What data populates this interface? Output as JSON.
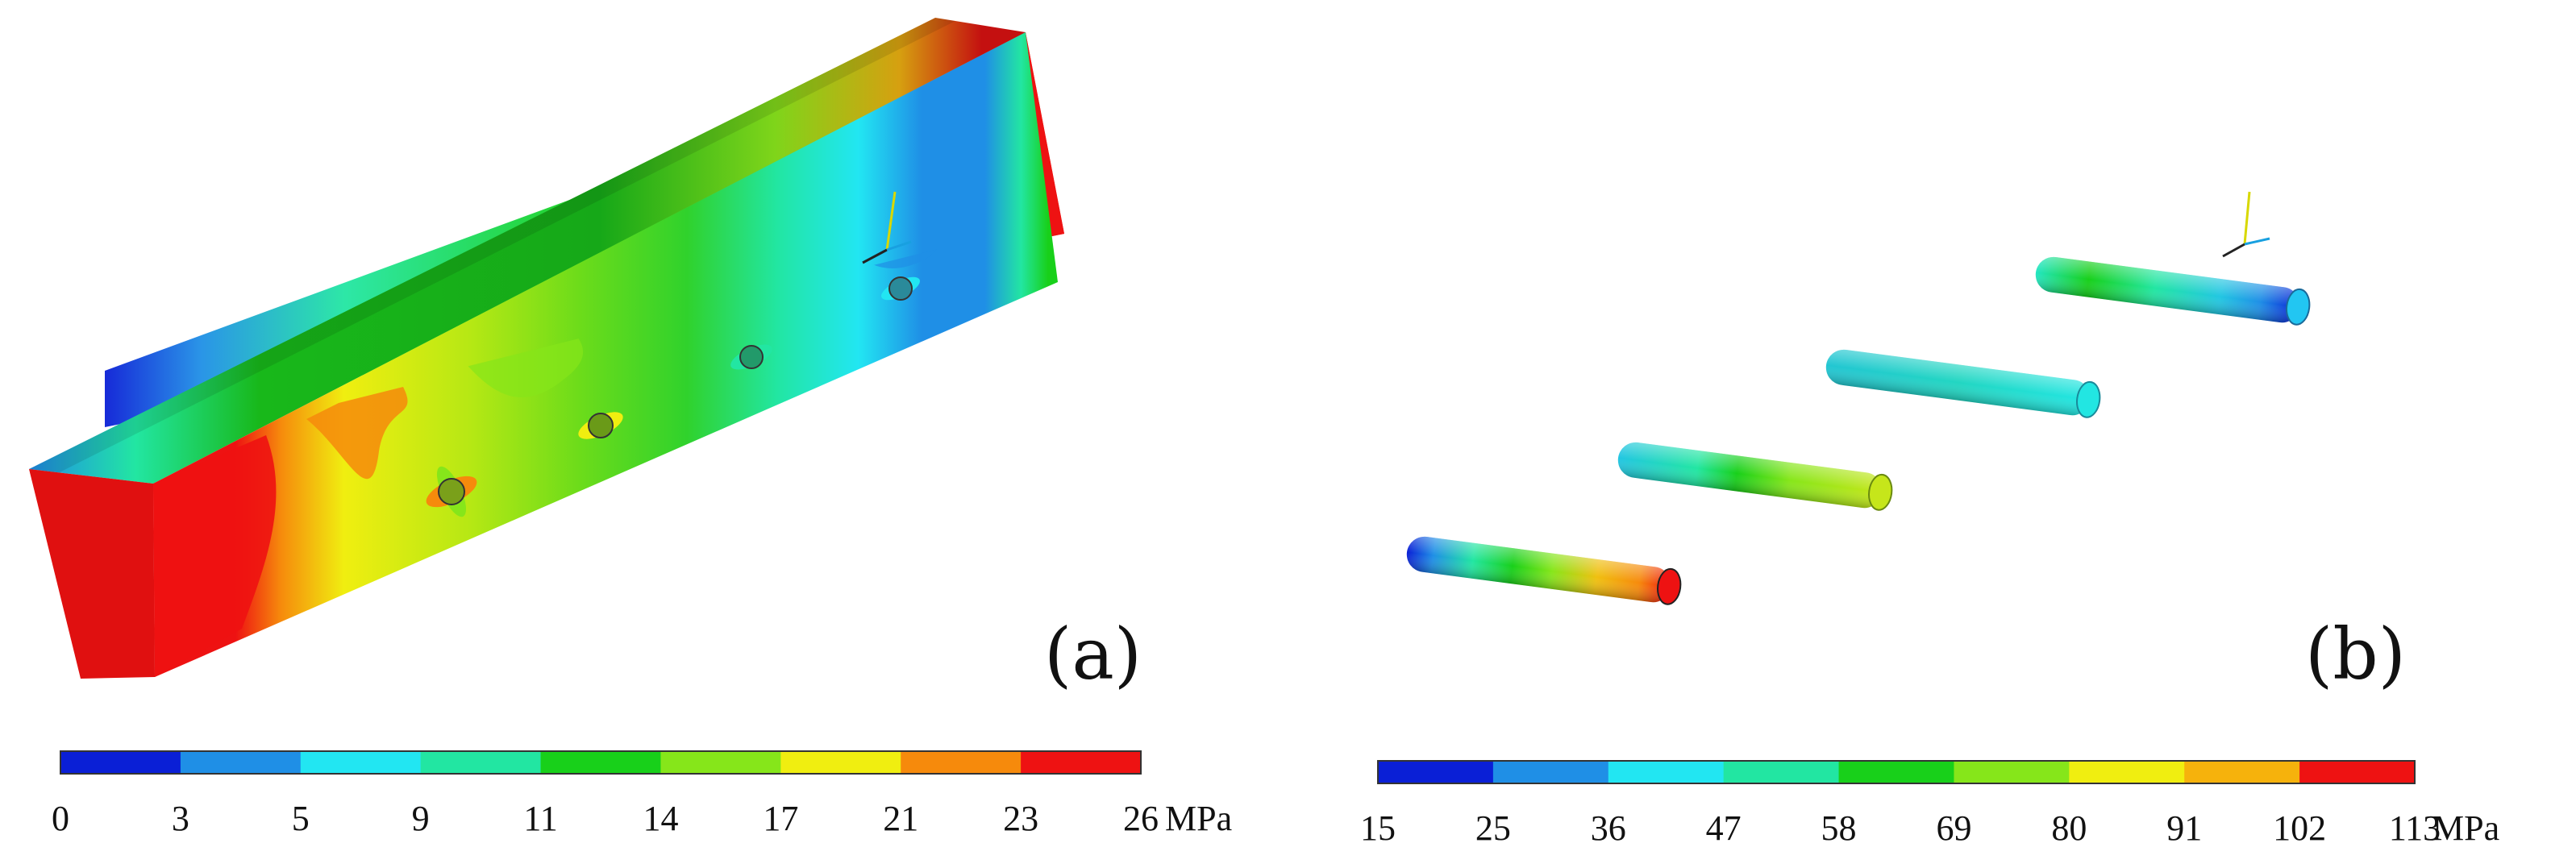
{
  "panel_a": {
    "label": "(a)",
    "colorbar": {
      "colors": [
        "#0a1fd6",
        "#1f8fe6",
        "#22e6f2",
        "#22e6a2",
        "#18d01a",
        "#86e61a",
        "#f0ee10",
        "#f68a0c",
        "#ee1212"
      ],
      "ticks": [
        "0",
        "3",
        "5",
        "9",
        "11",
        "14",
        "17",
        "21",
        "23",
        "26"
      ],
      "unit": "MPa"
    }
  },
  "panel_b": {
    "label": "(b)",
    "colorbar": {
      "colors": [
        "#0a1fd6",
        "#1f8fe6",
        "#22e6f2",
        "#22e6a2",
        "#18d01a",
        "#86e61a",
        "#f0ee10",
        "#f6b20c",
        "#ee1212"
      ],
      "ticks": [
        "15",
        "25",
        "36",
        "47",
        "58",
        "69",
        "80",
        "91",
        "102",
        "113"
      ],
      "unit": "MPa"
    }
  }
}
